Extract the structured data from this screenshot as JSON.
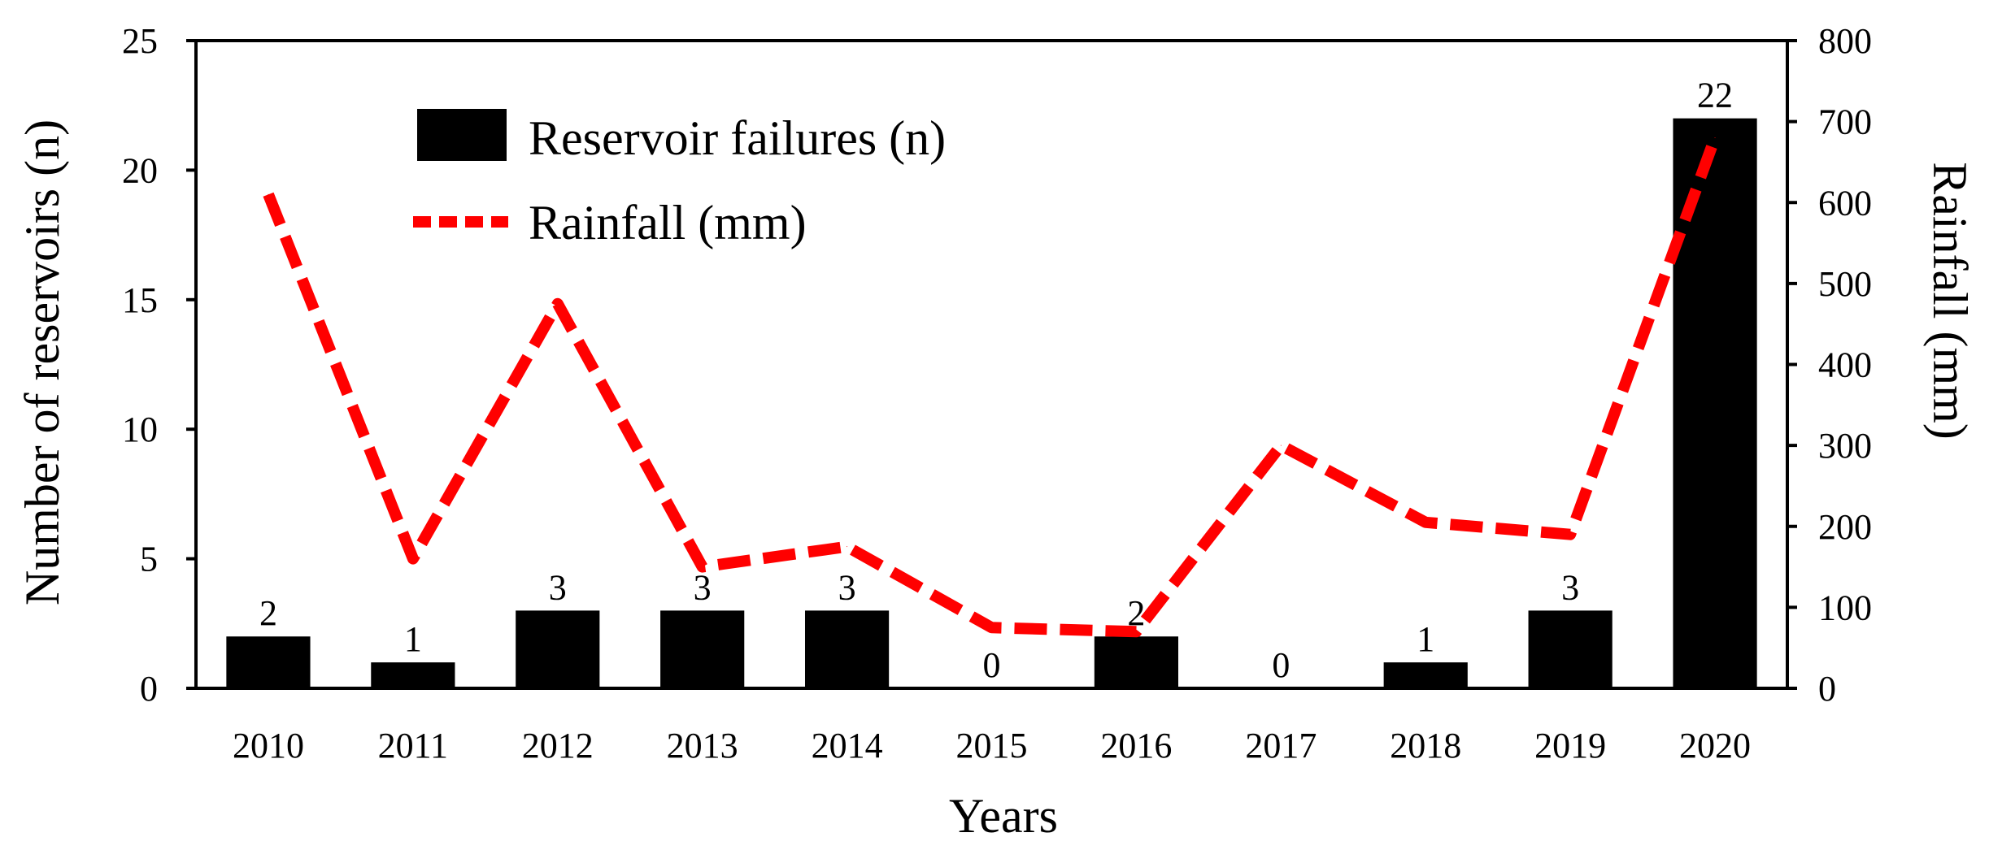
{
  "chart_data": {
    "type": "bar+line",
    "categories": [
      "2010",
      "2011",
      "2012",
      "2013",
      "2014",
      "2015",
      "2016",
      "2017",
      "2018",
      "2019",
      "2020"
    ],
    "series": [
      {
        "name": "Reservoir failures (n)",
        "type": "bar",
        "axis": "left",
        "color": "#000000",
        "values": [
          2,
          1,
          3,
          3,
          3,
          0,
          2,
          0,
          1,
          3,
          22
        ],
        "value_labels": [
          "2",
          "1",
          "3",
          "3",
          "3",
          "0",
          "2",
          "0",
          "1",
          "3",
          "22"
        ]
      },
      {
        "name": "Rainfall (mm)",
        "type": "line",
        "style": "dashed",
        "axis": "right",
        "color": "#ff0000",
        "values": [
          610,
          160,
          475,
          150,
          175,
          75,
          70,
          300,
          205,
          190,
          680
        ]
      }
    ],
    "xlabel": "Years",
    "ylabel": "Number of reservoirs (n)",
    "y2label": "Rainfall (mm)",
    "ylim": [
      0,
      25
    ],
    "yticks": [
      "0",
      "5",
      "10",
      "15",
      "20",
      "25"
    ],
    "y2lim": [
      0,
      800
    ],
    "y2ticks": [
      "0",
      "100",
      "200",
      "300",
      "400",
      "500",
      "600",
      "700",
      "800"
    ],
    "legend": {
      "position": "top-left",
      "items": [
        "Reservoir failures (n)",
        "Rainfall (mm)"
      ]
    },
    "grid": false
  }
}
